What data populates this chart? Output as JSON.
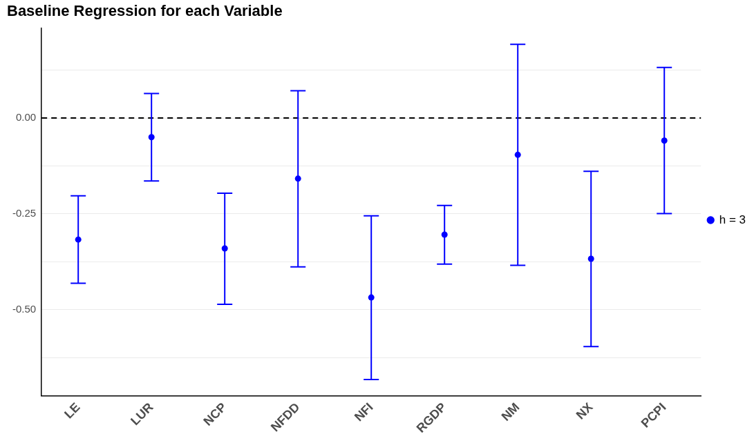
{
  "chart_data": {
    "type": "scatter",
    "title": "Baseline Regression for each Variable",
    "categories": [
      "LE",
      "LUR",
      "NCP",
      "NFDD",
      "NFI",
      "RGDP",
      "NM",
      "NX",
      "PCPI"
    ],
    "series": [
      {
        "name": "h = 3",
        "color": "#0000ff",
        "values": [
          -0.317,
          -0.05,
          -0.34,
          -0.158,
          -0.468,
          -0.304,
          -0.096,
          -0.367,
          -0.059
        ],
        "errors": [
          [
            -0.431,
            -0.203
          ],
          [
            -0.164,
            0.064
          ],
          [
            -0.486,
            -0.196
          ],
          [
            -0.388,
            0.071
          ],
          [
            -0.682,
            -0.255
          ],
          [
            -0.381,
            -0.228
          ],
          [
            -0.384,
            0.192
          ],
          [
            -0.596,
            -0.139
          ],
          [
            -0.249,
            0.132
          ]
        ]
      }
    ],
    "ylim": [
      -0.725,
      0.235
    ],
    "yticks": [
      {
        "value": -0.625,
        "label": null
      },
      {
        "value": -0.5,
        "label": "-0.50"
      },
      {
        "value": -0.375,
        "label": null
      },
      {
        "value": -0.25,
        "label": "-0.25"
      },
      {
        "value": -0.125,
        "label": null
      },
      {
        "value": 0,
        "label": "0.00"
      },
      {
        "value": 0.125,
        "label": null
      }
    ],
    "ref_lines": [
      {
        "axis": "y",
        "value": 0,
        "label": null,
        "color": "#000000",
        "line_style": "dashed"
      }
    ],
    "grid": "y",
    "legend": "right",
    "marker": "circle"
  }
}
